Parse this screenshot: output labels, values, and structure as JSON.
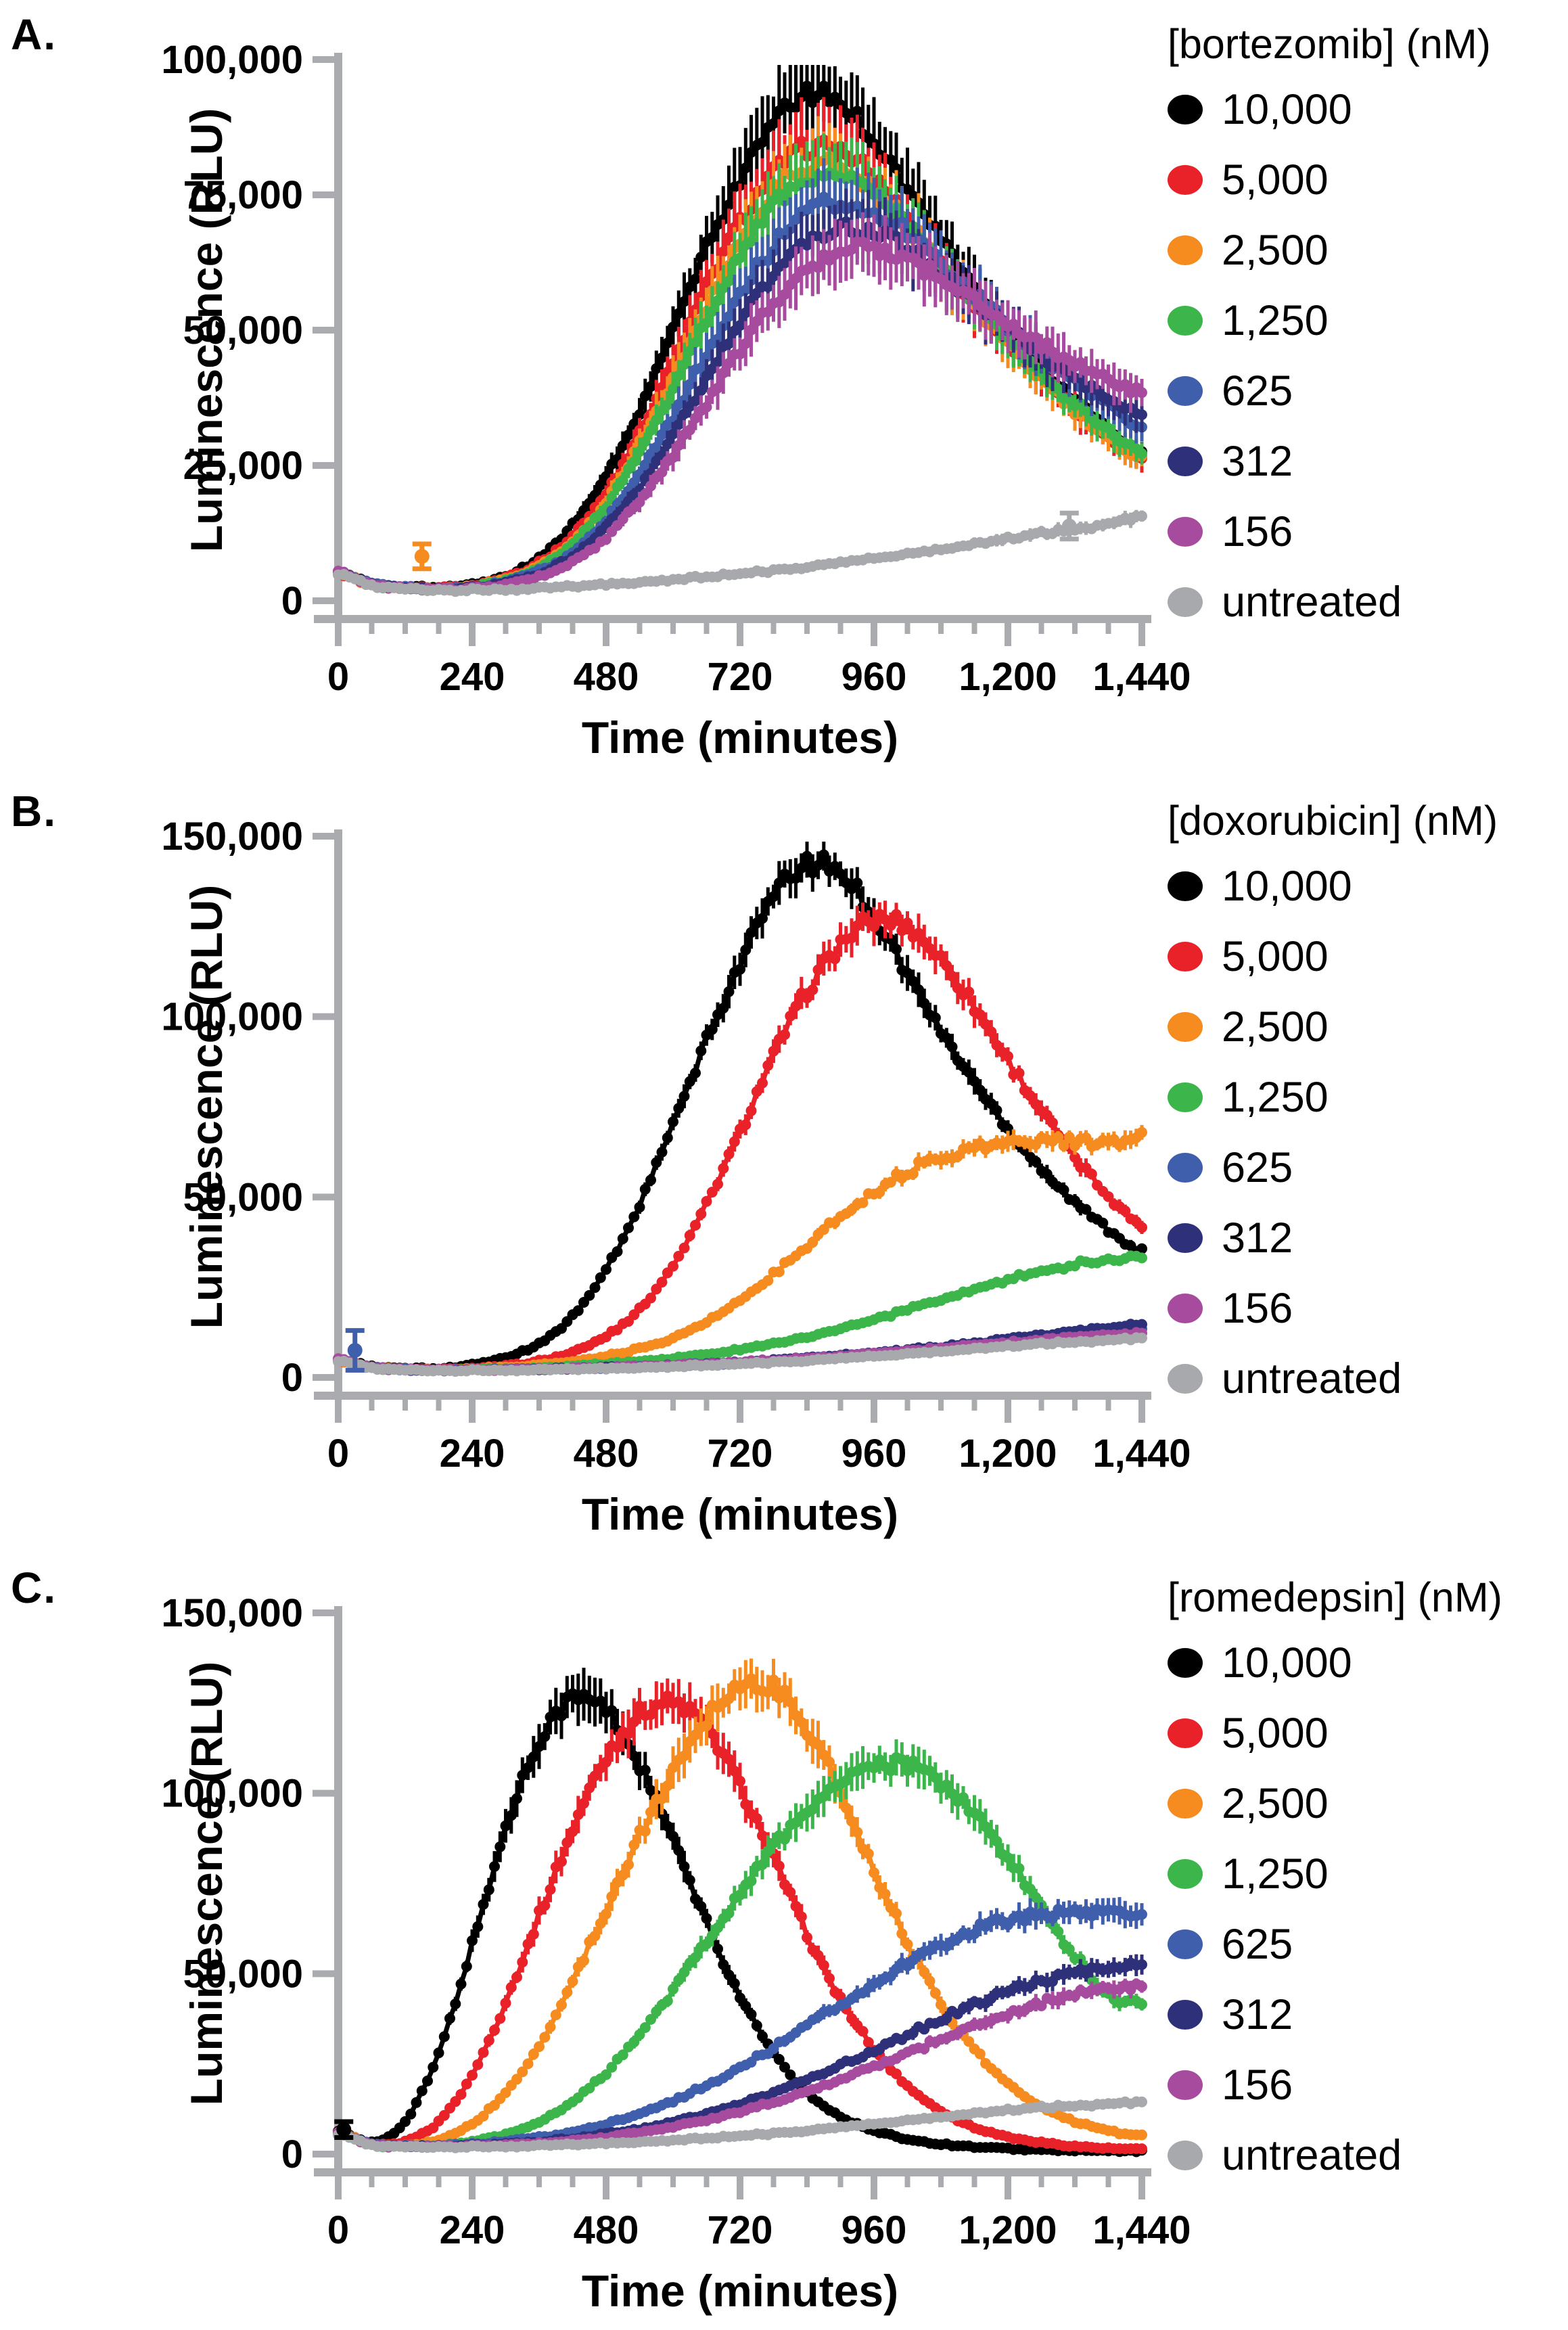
{
  "style": {
    "axis_color": "#A9ABAE",
    "text_color": "#000000"
  },
  "chart_data": [
    {
      "type": "line",
      "panel_label": "A.",
      "legend_title": "[bortezomib] (nM)",
      "xlabel": "Time (minutes)",
      "ylabel": "Luminescence (RLU)",
      "xlim": [
        0,
        1440
      ],
      "ylim": [
        0,
        100000
      ],
      "x_ticks": [
        0,
        240,
        480,
        720,
        960,
        1200,
        1440
      ],
      "x_minor_step": 60,
      "y_ticks": [
        0,
        25000,
        50000,
        75000,
        100000
      ],
      "sample_interval_minutes": 10,
      "error_frac": 0.08,
      "error_min": 700,
      "control_times": [
        0,
        60,
        120,
        180,
        240,
        300,
        360,
        420,
        480,
        540,
        600,
        660,
        720,
        780,
        840,
        900,
        960,
        1020,
        1080,
        1140,
        1200,
        1260,
        1320,
        1380,
        1440
      ],
      "series": [
        {
          "name": "10,000",
          "color": "#000000",
          "values": [
            5500,
            3000,
            2500,
            2500,
            3000,
            4500,
            8000,
            14000,
            23000,
            35000,
            50000,
            65000,
            78000,
            88000,
            93500,
            92000,
            85000,
            76000,
            67000,
            58000,
            50000,
            43000,
            37000,
            31500,
            27000
          ]
        },
        {
          "name": "5,000",
          "color": "#E82228",
          "values": [
            5200,
            2900,
            2400,
            2400,
            2800,
            4200,
            7000,
            12000,
            20000,
            31000,
            44000,
            58000,
            70000,
            79000,
            83500,
            83000,
            78000,
            70500,
            62500,
            55000,
            48000,
            41500,
            35500,
            30500,
            26500
          ]
        },
        {
          "name": "2,500",
          "color": "#F68B1F",
          "values": [
            5200,
            2900,
            2400,
            2300,
            2700,
            4000,
            6500,
            11000,
            18500,
            29000,
            41000,
            54500,
            66500,
            75500,
            80000,
            80000,
            76000,
            69500,
            62000,
            54500,
            47500,
            41000,
            35000,
            30000,
            26000
          ]
        },
        {
          "name": "1,250",
          "color": "#3CB54B",
          "values": [
            5300,
            2950,
            2400,
            2300,
            2600,
            3800,
            6200,
            10500,
            17500,
            27500,
            39000,
            52000,
            64000,
            73000,
            78000,
            78500,
            75000,
            69000,
            62000,
            55000,
            48500,
            42000,
            36500,
            31500,
            27500
          ]
        },
        {
          "name": "625",
          "color": "#3F5EAB",
          "values": [
            5500,
            3200,
            2500,
            2300,
            2500,
            3500,
            5500,
            9000,
            15000,
            23500,
            34000,
            45500,
            56500,
            65500,
            71500,
            73500,
            72000,
            68000,
            62500,
            56500,
            51000,
            45500,
            40500,
            36000,
            32500
          ]
        },
        {
          "name": "312",
          "color": "#2E3179",
          "values": [
            5400,
            3100,
            2400,
            2200,
            2400,
            3300,
            5000,
            8200,
            13500,
            21000,
            30500,
            41000,
            51500,
            60000,
            66000,
            68500,
            68000,
            65000,
            60500,
            55500,
            50500,
            45500,
            41000,
            37000,
            34000
          ]
        },
        {
          "name": "156",
          "color": "#A74B9F",
          "values": [
            5300,
            3000,
            2300,
            2100,
            2300,
            3000,
            4500,
            7200,
            11800,
            18500,
            27000,
            36500,
            46500,
            55000,
            61000,
            64500,
            65000,
            63000,
            59500,
            55500,
            51500,
            47500,
            44000,
            41000,
            38500
          ]
        },
        {
          "name": "untreated",
          "color": "#A7A9AC",
          "values": [
            5000,
            2800,
            2200,
            2000,
            2000,
            2100,
            2300,
            2600,
            3000,
            3400,
            3900,
            4400,
            5000,
            5600,
            6300,
            7000,
            7800,
            8600,
            9500,
            10400,
            11400,
            12400,
            13300,
            14200,
            15500
          ]
        }
      ],
      "outliers": [
        {
          "series": 2,
          "t": 150,
          "value": 8200,
          "err": 2300
        },
        {
          "series": 7,
          "t": 1310,
          "value": 13800,
          "err": 2400
        }
      ]
    },
    {
      "type": "line",
      "panel_label": "B.",
      "legend_title": "[doxorubicin] (nM)",
      "xlabel": "Time (minutes)",
      "ylabel": "Luminescence (RLU)",
      "xlim": [
        0,
        1440
      ],
      "ylim": [
        0,
        150000
      ],
      "x_ticks": [
        0,
        240,
        480,
        720,
        960,
        1200,
        1440
      ],
      "x_minor_step": 60,
      "y_ticks": [
        0,
        50000,
        100000,
        150000
      ],
      "sample_interval_minutes": 10,
      "error_frac": 0.035,
      "error_min": 600,
      "control_times": [
        0,
        60,
        120,
        180,
        240,
        300,
        360,
        420,
        480,
        540,
        600,
        660,
        720,
        780,
        840,
        900,
        960,
        1020,
        1080,
        1140,
        1200,
        1260,
        1320,
        1380,
        1440
      ],
      "series": [
        {
          "name": "10,000",
          "color": "#000000",
          "values": [
            5000,
            3000,
            2500,
            2500,
            3500,
            5500,
            9500,
            17000,
            30000,
            48000,
            70000,
            93000,
            115000,
            133000,
            142000,
            140000,
            128000,
            112000,
            96000,
            82000,
            69000,
            58000,
            48500,
            41000,
            35000
          ]
        },
        {
          "name": "5,000",
          "color": "#E82228",
          "values": [
            4800,
            2800,
            2300,
            2200,
            2500,
            3200,
            4500,
            7000,
            11500,
            19000,
            31000,
            48000,
            68000,
            89000,
            107000,
            120000,
            126500,
            125000,
            116000,
            103000,
            88000,
            74000,
            61000,
            50500,
            42000
          ]
        },
        {
          "name": "2,500",
          "color": "#F68B1F",
          "values": [
            4700,
            2800,
            2300,
            2200,
            2400,
            2800,
            3500,
            4500,
            6000,
            8000,
            11000,
            15500,
            21500,
            28500,
            36500,
            44500,
            51500,
            57000,
            61000,
            63500,
            65000,
            65500,
            65200,
            64800,
            66500
          ]
        },
        {
          "name": "1,250",
          "color": "#3CB54B",
          "values": [
            4700,
            2700,
            2200,
            2100,
            2200,
            2400,
            2700,
            3100,
            3700,
            4400,
            5300,
            6400,
            7800,
            9400,
            11300,
            13500,
            16000,
            18700,
            21500,
            24300,
            27000,
            29400,
            31300,
            32500,
            33500
          ]
        },
        {
          "name": "625",
          "color": "#3F5EAB",
          "values": [
            5200,
            2800,
            2200,
            2100,
            2100,
            2200,
            2300,
            2500,
            2700,
            3000,
            3300,
            3700,
            4100,
            4600,
            5200,
            5800,
            6500,
            7300,
            8100,
            9000,
            9900,
            10800,
            11700,
            12600,
            13500
          ]
        },
        {
          "name": "312",
          "color": "#2E3179",
          "values": [
            4900,
            2700,
            2100,
            2000,
            2000,
            2100,
            2250,
            2450,
            2700,
            3000,
            3350,
            3750,
            4200,
            4750,
            5350,
            6000,
            6750,
            7600,
            8500,
            9500,
            10600,
            11700,
            12700,
            13600,
            14500
          ]
        },
        {
          "name": "156",
          "color": "#A74B9F",
          "values": [
            5000,
            2800,
            2150,
            2050,
            2050,
            2150,
            2300,
            2500,
            2750,
            3050,
            3400,
            3800,
            4250,
            4750,
            5300,
            5900,
            6550,
            7300,
            8100,
            8900,
            9700,
            10500,
            11200,
            11700,
            12200
          ]
        },
        {
          "name": "untreated",
          "color": "#A7A9AC",
          "values": [
            4600,
            2600,
            2050,
            1950,
            1950,
            2000,
            2100,
            2250,
            2450,
            2700,
            3000,
            3350,
            3750,
            4200,
            4700,
            5250,
            5850,
            6500,
            7200,
            7900,
            8600,
            9300,
            9900,
            10300,
            10800
          ]
        }
      ],
      "outliers": [
        {
          "series": 4,
          "t": 30,
          "value": 7500,
          "err": 5500
        }
      ]
    },
    {
      "type": "line",
      "panel_label": "C.",
      "legend_title": "[romedepsin] (nM)",
      "xlabel": "Time (minutes)",
      "ylabel": "Luminescence (RLU)",
      "xlim": [
        0,
        1440
      ],
      "ylim": [
        0,
        150000
      ],
      "x_ticks": [
        0,
        240,
        480,
        720,
        960,
        1200,
        1440
      ],
      "x_minor_step": 60,
      "y_ticks": [
        0,
        50000,
        100000,
        150000
      ],
      "sample_interval_minutes": 10,
      "error_frac": 0.045,
      "error_min": 600,
      "control_times": [
        0,
        60,
        120,
        180,
        240,
        300,
        360,
        420,
        480,
        540,
        600,
        660,
        720,
        780,
        840,
        900,
        960,
        1020,
        1080,
        1140,
        1200,
        1260,
        1320,
        1380,
        1440
      ],
      "series": [
        {
          "name": "10,000",
          "color": "#000000",
          "values": [
            6500,
            3200,
            9000,
            28000,
            58000,
            90000,
            115000,
            126000,
            123000,
            108000,
            87000,
            64000,
            44000,
            28000,
            17000,
            10500,
            6500,
            4200,
            2800,
            2000,
            1500,
            1200,
            1000,
            900,
            850
          ]
        },
        {
          "name": "5,000",
          "color": "#E82228",
          "values": [
            6000,
            2800,
            3500,
            9000,
            22000,
            42000,
            66000,
            90000,
            110000,
            122000,
            125000,
            118000,
            102000,
            82000,
            61000,
            43000,
            29000,
            19000,
            12000,
            7500,
            4800,
            3200,
            2200,
            1600,
            1300
          ]
        },
        {
          "name": "2,500",
          "color": "#F68B1F",
          "values": [
            5800,
            2700,
            2500,
            4000,
            8500,
            17000,
            30000,
            48000,
            68000,
            88000,
            106000,
            121000,
            130000,
            129000,
            118000,
            100000,
            79000,
            59000,
            42000,
            29000,
            19500,
            13000,
            9000,
            6500,
            5000
          ]
        },
        {
          "name": "1,250",
          "color": "#3CB54B",
          "values": [
            5800,
            2600,
            2200,
            2500,
            3500,
            5500,
            9000,
            14500,
            22500,
            33000,
            45500,
            59000,
            72500,
            85000,
            95500,
            103000,
            107000,
            107500,
            103000,
            94000,
            82000,
            68500,
            55000,
            44000,
            42000
          ]
        },
        {
          "name": "625",
          "color": "#3F5EAB",
          "values": [
            6000,
            2800,
            2300,
            2400,
            2800,
            3500,
            4600,
            6200,
            8400,
            11200,
            14800,
            19000,
            24000,
            29500,
            35500,
            41500,
            47500,
            53000,
            58000,
            62000,
            65000,
            66500,
            67000,
            66500,
            67500
          ]
        },
        {
          "name": "312",
          "color": "#2E3179",
          "values": [
            5900,
            2700,
            2200,
            2200,
            2400,
            2800,
            3400,
            4300,
            5500,
            7000,
            8900,
            11200,
            13900,
            17000,
            20500,
            24500,
            28500,
            33000,
            37500,
            41500,
            45000,
            48000,
            50000,
            51000,
            52000
          ]
        },
        {
          "name": "156",
          "color": "#A74B9F",
          "values": [
            5800,
            2600,
            2100,
            2100,
            2250,
            2550,
            3000,
            3700,
            4700,
            6000,
            7600,
            9500,
            11800,
            14400,
            17400,
            20700,
            24200,
            28000,
            31800,
            35500,
            39000,
            42000,
            44500,
            46000,
            46500
          ]
        },
        {
          "name": "untreated",
          "color": "#A7A9AC",
          "values": [
            5500,
            2500,
            2050,
            2000,
            2050,
            2150,
            2350,
            2600,
            2950,
            3350,
            3850,
            4400,
            5050,
            5750,
            6550,
            7400,
            8300,
            9300,
            10300,
            11200,
            12100,
            12900,
            13500,
            13900,
            14300
          ]
        }
      ],
      "outliers": [
        {
          "series": 0,
          "t": 10,
          "value": 6800,
          "err": 2200
        }
      ]
    }
  ]
}
